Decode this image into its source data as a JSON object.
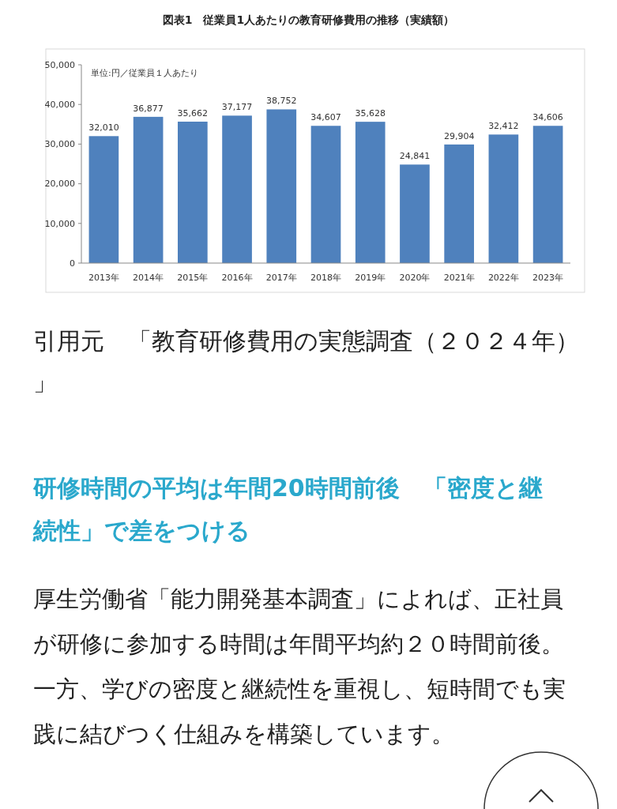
{
  "chart_data": {
    "type": "bar",
    "title": "図表1　従業員1人あたりの教育研修費用の推移（実績額）",
    "categories": [
      "2013年",
      "2014年",
      "2015年",
      "2016年",
      "2017年",
      "2018年",
      "2019年",
      "2020年",
      "2021年",
      "2022年",
      "2023年"
    ],
    "values": [
      32010,
      36877,
      35662,
      37177,
      38752,
      34607,
      35628,
      24841,
      29904,
      32412,
      34606
    ],
    "color": "#4f81bd",
    "grid": false,
    "value_labels": [
      "32,010",
      "36,877",
      "35,662",
      "37,177",
      "38,752",
      "34,607",
      "35,628",
      "24,841",
      "29,904",
      "32,412",
      "34,606"
    ],
    "ylim": [
      0,
      50000
    ],
    "yticks": [
      {
        "value": 0,
        "label": "0"
      },
      {
        "value": 10000,
        "label": "10,000"
      },
      {
        "value": 20000,
        "label": "20,000"
      },
      {
        "value": 30000,
        "label": "30,000"
      },
      {
        "value": 40000,
        "label": "40,000"
      },
      {
        "value": 50000,
        "label": "50,000"
      }
    ],
    "annotations": [
      "単位:円／従業員１人あたり",
      "引用元　「教育研修費用の実態調査（２０２４年）」",
      "研修時間の平均は年間20時間前後　「密度と継続性」で差をつける",
      "厚生労働省「能力開発基本調査」によれば、正社員が研修に参加する時間は年間平均約２０時間前後。一方、学びの密度と継続性を重視し、短時間でも実践に結びつく仕組みを構築しています。"
    ]
  }
}
